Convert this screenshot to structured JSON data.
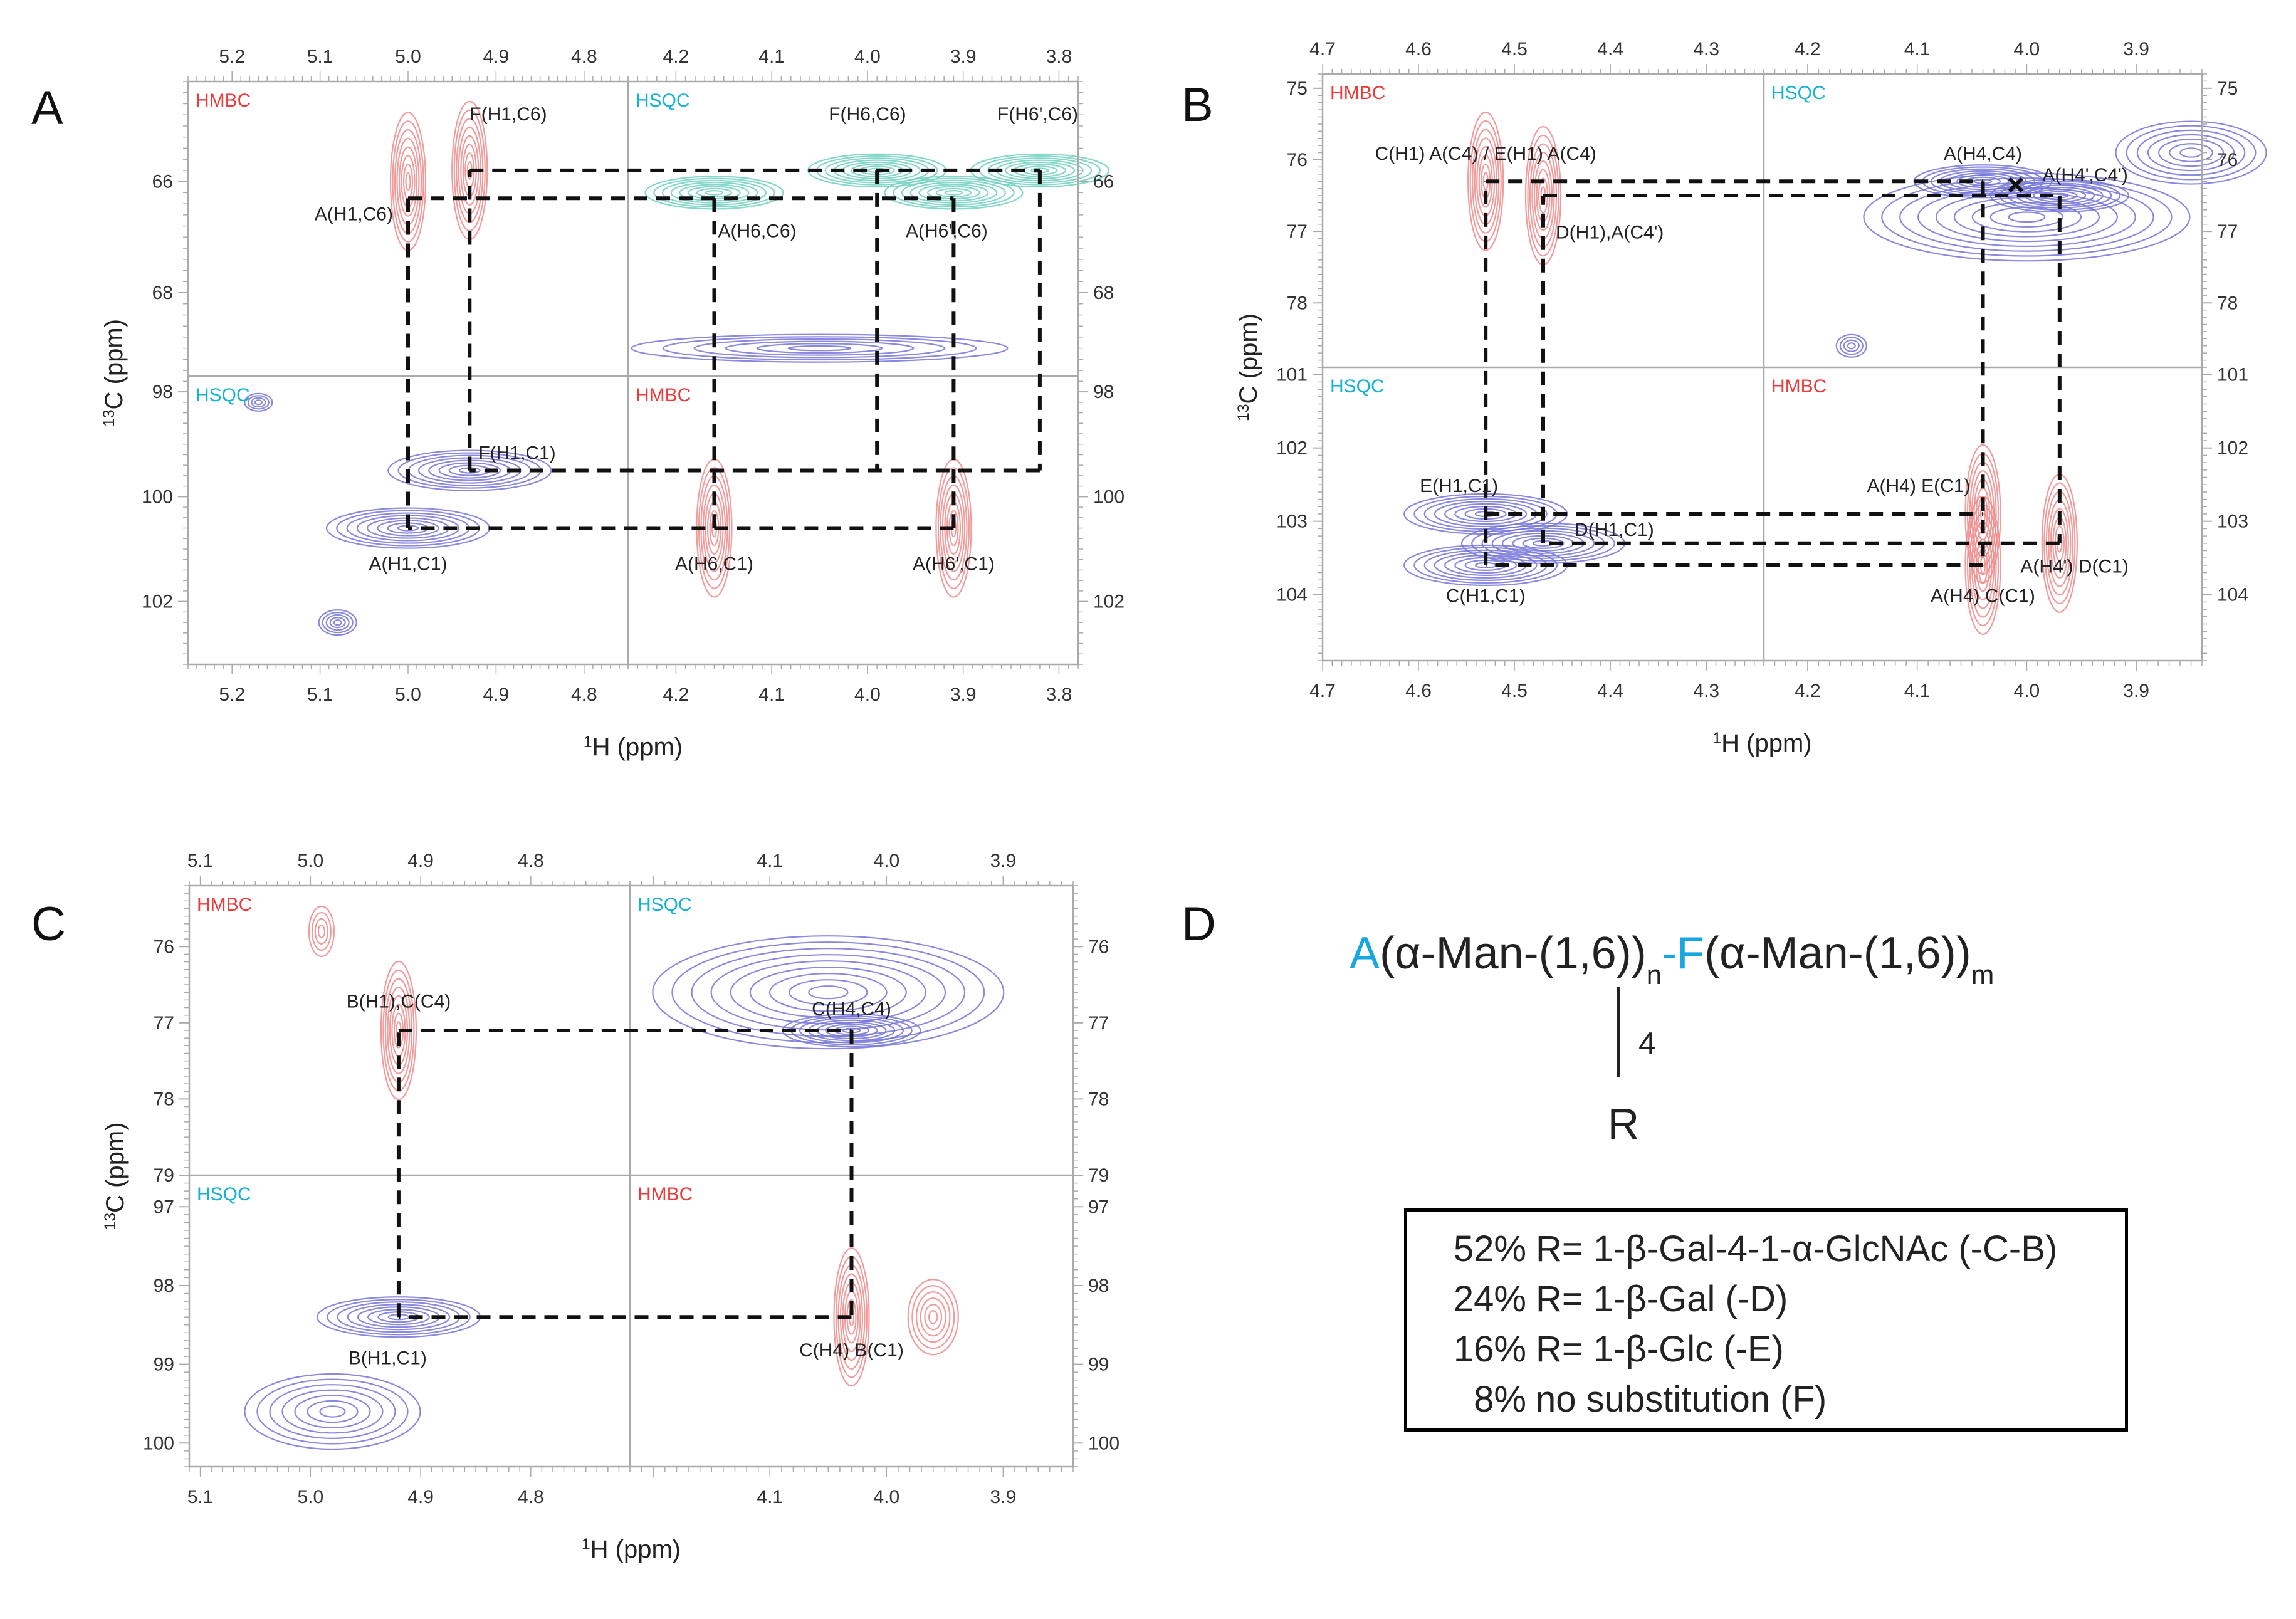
{
  "panel_letters": [
    "A",
    "B",
    "C",
    "D"
  ],
  "chart_data": [
    {
      "type": "contour",
      "panel": "A",
      "xlabel_sup": "1",
      "xlabel": "H (ppm)",
      "ylabel_sup": "13",
      "ylabel": "C (ppm)",
      "left_x": {
        "range": [
          5.25,
          4.75
        ],
        "ticks": [
          "5.2",
          "5.1",
          "5.0",
          "4.9",
          "4.8"
        ],
        "tick_values": [
          5.2,
          5.1,
          5.0,
          4.9,
          4.8
        ]
      },
      "right_x": {
        "range": [
          4.25,
          3.78
        ],
        "ticks": [
          "4.2",
          "4.1",
          "4.0",
          "3.9",
          "3.8"
        ],
        "tick_values": [
          4.2,
          4.1,
          4.0,
          3.9,
          3.8
        ]
      },
      "top_y": {
        "range": [
          64.2,
          69.5
        ],
        "ticks": [
          "66",
          "68"
        ],
        "tick_values": [
          66,
          68
        ]
      },
      "bottom_y": {
        "range": [
          97.7,
          103.2
        ],
        "ticks": [
          "98",
          "100",
          "102"
        ],
        "tick_values": [
          98,
          100,
          102
        ]
      },
      "quadrant_labels": {
        "top_left": "HMBC",
        "top_right": "HSQC",
        "bottom_left": "HSQC",
        "bottom_right": "HMBC"
      },
      "annotations": [
        "F(H1,C6)",
        "A(H1,C6)",
        "F(H6,C6)",
        "F(H6',C6)",
        "A(H6,C6)",
        "A(H6',C6)",
        "F(H1,C1)",
        "A(H1,C1)",
        "A(H6,C1)",
        "A(H6',C1)"
      ],
      "peaks": [
        {
          "label": "A(H1,C6)",
          "h": 5.0,
          "c": 66.0,
          "exp": "HMBC"
        },
        {
          "label": "F(H1,C6)",
          "h": 4.93,
          "c": 65.8,
          "exp": "HMBC"
        },
        {
          "label": "A(H6,C6)",
          "h": 4.16,
          "c": 66.2,
          "exp": "HSQC"
        },
        {
          "label": "A(H6',C6)",
          "h": 3.91,
          "c": 66.2,
          "exp": "HSQC"
        },
        {
          "label": "F(H6,C6)",
          "h": 3.99,
          "c": 65.8,
          "exp": "HSQC"
        },
        {
          "label": "F(H6',C6)",
          "h": 3.82,
          "c": 65.8,
          "exp": "HSQC"
        },
        {
          "label": "F(H1,C1)",
          "h": 4.93,
          "c": 99.5,
          "exp": "HSQC"
        },
        {
          "label": "A(H1,C1)",
          "h": 5.0,
          "c": 100.6,
          "exp": "HSQC"
        },
        {
          "label": "A(H6,C1)",
          "h": 4.16,
          "c": 100.6,
          "exp": "HMBC"
        },
        {
          "label": "A(H6',C1)",
          "h": 3.91,
          "c": 100.6,
          "exp": "HMBC"
        }
      ]
    },
    {
      "type": "contour",
      "panel": "B",
      "xlabel_sup": "1",
      "xlabel": "H (ppm)",
      "ylabel_sup": "13",
      "ylabel": "C (ppm)",
      "left_x": {
        "range": [
          4.7,
          4.24
        ],
        "ticks": [
          "4.7",
          "4.6",
          "4.5",
          "4.4",
          "4.3"
        ],
        "tick_values": [
          4.7,
          4.6,
          4.5,
          4.4,
          4.3
        ]
      },
      "right_x": {
        "range": [
          4.24,
          3.84
        ],
        "ticks": [
          "4.2",
          "4.1",
          "4.0",
          "3.9"
        ],
        "tick_values": [
          4.2,
          4.1,
          4.0,
          3.9
        ]
      },
      "top_y": {
        "range": [
          74.8,
          78.9
        ],
        "ticks": [
          "75",
          "76",
          "77",
          "78"
        ],
        "tick_values": [
          75,
          76,
          77,
          78
        ]
      },
      "bottom_y": {
        "range": [
          100.9,
          104.9
        ],
        "ticks": [
          "101",
          "102",
          "103",
          "104"
        ],
        "tick_values": [
          101,
          102,
          103,
          104
        ]
      },
      "quadrant_labels": {
        "top_left": "HMBC",
        "top_right": "HSQC",
        "bottom_left": "HSQC",
        "bottom_right": "HMBC"
      },
      "annotations": [
        "C(H1) A(C4) / E(H1) A(C4)",
        "D(H1),A(C4')",
        "A(H4,C4)",
        "A(H4',C4')",
        "E(H1,C1)",
        "D(H1,C1)",
        "C(H1,C1)",
        "A(H4) E(C1)",
        "A(H4') D(C1)",
        "A(H4) C(C1)"
      ],
      "peaks": [
        {
          "label": "C(H1) A(C4) / E(H1) A(C4)",
          "h": 4.53,
          "c": 76.3,
          "exp": "HMBC"
        },
        {
          "label": "D(H1),A(C4')",
          "h": 4.47,
          "c": 76.5,
          "exp": "HMBC"
        },
        {
          "label": "A(H4,C4)",
          "h": 4.04,
          "c": 76.3,
          "exp": "HSQC"
        },
        {
          "label": "A(H4',C4')",
          "h": 3.97,
          "c": 76.5,
          "exp": "HSQC"
        },
        {
          "label": "E(H1,C1)",
          "h": 4.53,
          "c": 102.9,
          "exp": "HSQC"
        },
        {
          "label": "D(H1,C1)",
          "h": 4.47,
          "c": 103.3,
          "exp": "HSQC"
        },
        {
          "label": "C(H1,C1)",
          "h": 4.53,
          "c": 103.6,
          "exp": "HSQC"
        },
        {
          "label": "A(H4) E(C1)",
          "h": 4.04,
          "c": 102.9,
          "exp": "HMBC"
        },
        {
          "label": "A(H4') D(C1)",
          "h": 3.97,
          "c": 103.3,
          "exp": "HMBC"
        },
        {
          "label": "A(H4) C(C1)",
          "h": 4.04,
          "c": 103.6,
          "exp": "HMBC"
        }
      ]
    },
    {
      "type": "contour",
      "panel": "C",
      "xlabel_sup": "1",
      "xlabel": "H (ppm)",
      "ylabel_sup": "13",
      "ylabel": "C (ppm)",
      "left_x": {
        "range": [
          5.11,
          4.71
        ],
        "ticks": [
          "5.1",
          "5.0",
          "4.9",
          "4.8"
        ],
        "tick_values": [
          5.1,
          5.0,
          4.9,
          4.8
        ]
      },
      "right_x": {
        "range": [
          4.22,
          3.84
        ],
        "ticks": [
          "4.1",
          "4.0",
          "3.9"
        ],
        "tick_values": [
          4.1,
          4.0,
          3.9
        ]
      },
      "top_y": {
        "range": [
          75.2,
          79.0
        ],
        "ticks": [
          "76",
          "77",
          "78",
          "79"
        ],
        "tick_values": [
          76,
          77,
          78,
          79
        ]
      },
      "bottom_y": {
        "range": [
          96.6,
          100.3
        ],
        "ticks": [
          "97",
          "98",
          "99",
          "100"
        ],
        "tick_values": [
          97,
          98,
          99,
          100
        ]
      },
      "quadrant_labels": {
        "top_left": "HMBC",
        "top_right": "HSQC",
        "bottom_left": "HSQC",
        "bottom_right": "HMBC"
      },
      "annotations": [
        "B(H1),C(C4)",
        "C(H4,C4)",
        "B(H1,C1)",
        "C(H4) B(C1)"
      ],
      "peaks": [
        {
          "label": "B(H1),C(C4)",
          "h": 4.92,
          "c": 77.1,
          "exp": "HMBC"
        },
        {
          "label": "C(H4,C4)",
          "h": 4.03,
          "c": 77.1,
          "exp": "HSQC"
        },
        {
          "label": "B(H1,C1)",
          "h": 4.92,
          "c": 98.4,
          "exp": "HSQC"
        },
        {
          "label": "C(H4) B(C1)",
          "h": 4.03,
          "c": 98.4,
          "exp": "HMBC"
        }
      ]
    }
  ],
  "panel_d": {
    "formula": {
      "a": "A",
      "part1": "(α-Man-(1,6))",
      "sub_n": "n",
      "dash": "-",
      "f": "F",
      "part2": "(α-Man-(1,6))",
      "sub_m": "m",
      "branch_pos": "4",
      "r": "R"
    },
    "table": [
      {
        "pct": "52%",
        "text": "R= 1-β-Gal-4-1-α-GlcNAc (-C-B)"
      },
      {
        "pct": "24%",
        "text": "R= 1-β-Gal (-D)"
      },
      {
        "pct": "16%",
        "text": "R= 1-β-Glc (-E)"
      },
      {
        "pct": "8%",
        "text": "no substitution (F)"
      }
    ]
  },
  "colors": {
    "hmbc": "#f03a3a",
    "hsqc": "#13b3d6",
    "hmbc_contour": "#f08a8a",
    "hsqc_contour": "#7474d8",
    "hsqc_contour_green": "#6fd0c0",
    "formula_accent": "#16a6e0"
  }
}
